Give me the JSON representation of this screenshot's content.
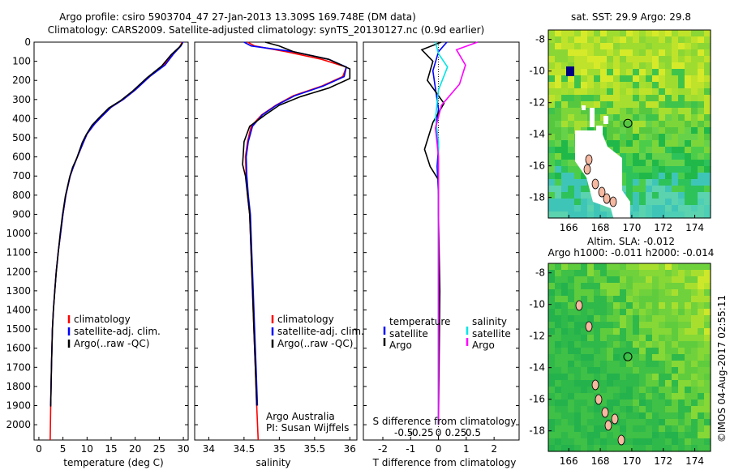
{
  "header": {
    "line1": "Argo profile: csiro 5903704_47 27-Jan-2013 13.309S 169.748E (DM data)",
    "line2": "Climatology: CARS2009. Satellite-adjusted climatology: synTS_20130127.nc (0.9d earlier)"
  },
  "colors": {
    "climatology": "#ff0000",
    "satellite": "#0000ff",
    "argo": "#000000",
    "t_satellite": "#0000ff",
    "t_argo": "#000000",
    "s_satellite": "#00e5e5",
    "s_argo": "#ff00ff"
  },
  "chart_data": [
    {
      "type": "line",
      "id": "temperature",
      "xlabel": "temperature (deg C)",
      "xlim": [
        -1,
        31
      ],
      "ylim": [
        2080,
        0
      ],
      "xticks": [
        "0",
        "5",
        "10",
        "15",
        "20",
        "25",
        "30"
      ],
      "yticks": [
        "0",
        "100",
        "200",
        "300",
        "400",
        "500",
        "600",
        "700",
        "800",
        "900",
        "1000",
        "1100",
        "1200",
        "1300",
        "1400",
        "1500",
        "1600",
        "1700",
        "1800",
        "1900",
        "2000"
      ],
      "legend": [
        "climatology",
        "satellite-adj. clim.",
        "Argo(..raw -QC)"
      ],
      "series": [
        {
          "name": "climatology",
          "x": [
            29.7,
            29.4,
            28,
            26,
            23,
            20,
            17.5,
            15,
            13,
            11.5,
            10,
            9.3,
            8,
            7.2,
            6.5,
            5.6,
            5,
            4.5,
            4,
            3.6,
            3.3,
            3,
            2.8,
            2.6,
            2.45,
            2.35
          ],
          "y": [
            0,
            20,
            60,
            120,
            180,
            250,
            300,
            340,
            390,
            430,
            480,
            520,
            600,
            650,
            700,
            800,
            900,
            1000,
            1100,
            1200,
            1300,
            1400,
            1500,
            1700,
            1900,
            2080
          ]
        },
        {
          "name": "satellite-adj. clim.",
          "x": [
            29.9,
            29.5,
            28,
            26.2,
            23,
            20,
            17.5,
            15,
            13,
            11.5,
            10,
            9.3,
            8,
            7.2,
            6.5,
            5.6,
            5,
            4.5,
            4,
            3.6,
            3.3,
            3,
            2.8,
            2.6,
            2.45
          ],
          "y": [
            0,
            20,
            60,
            120,
            180,
            250,
            300,
            340,
            390,
            430,
            480,
            520,
            600,
            650,
            700,
            800,
            900,
            1000,
            1100,
            1200,
            1300,
            1400,
            1500,
            1700,
            1900
          ]
        },
        {
          "name": "Argo(..raw -QC)",
          "x": [
            29.8,
            29.2,
            27.5,
            25.5,
            22.5,
            19.5,
            17,
            14.5,
            12.5,
            11,
            9.8,
            9,
            7.9,
            7.0,
            6.4,
            5.5,
            4.9,
            4.4,
            4,
            3.6,
            3.3,
            3,
            2.8,
            2.6,
            2.45
          ],
          "y": [
            5,
            25,
            65,
            125,
            185,
            255,
            305,
            345,
            395,
            435,
            485,
            525,
            605,
            655,
            705,
            805,
            905,
            1005,
            1105,
            1205,
            1305,
            1405,
            1505,
            1705,
            1905
          ]
        }
      ]
    },
    {
      "type": "line",
      "id": "salinity",
      "xlabel": "salinity",
      "xlim": [
        33.8,
        36.1
      ],
      "ylim": [
        2080,
        0
      ],
      "xticks": [
        "34",
        "34.5",
        "35",
        "35.5",
        "36"
      ],
      "legend": [
        "climatology",
        "satellite-adj. clim.",
        "Argo(..raw -QC)"
      ],
      "credit": [
        "Argo Australia",
        "PI: Susan Wijffels"
      ],
      "series": [
        {
          "name": "climatology",
          "x": [
            34.55,
            34.65,
            35.1,
            35.6,
            35.95,
            35.9,
            35.6,
            35.2,
            34.95,
            34.75,
            34.6,
            34.55,
            34.52,
            34.53,
            34.55,
            34.58,
            34.6,
            34.62,
            34.64,
            34.66,
            34.68,
            34.7
          ],
          "y": [
            0,
            20,
            50,
            90,
            130,
            180,
            230,
            280,
            330,
            380,
            440,
            520,
            600,
            700,
            800,
            900,
            1100,
            1300,
            1500,
            1700,
            1900,
            2080
          ]
        },
        {
          "name": "satellite-adj. clim.",
          "x": [
            34.5,
            34.6,
            35.2,
            35.7,
            35.95,
            35.92,
            35.62,
            35.22,
            34.96,
            34.76,
            34.62,
            34.56,
            34.53,
            34.54,
            34.56,
            34.59,
            34.61,
            34.63,
            34.65,
            34.67,
            34.69
          ],
          "y": [
            0,
            20,
            50,
            90,
            130,
            180,
            230,
            280,
            330,
            380,
            440,
            520,
            600,
            700,
            800,
            900,
            1100,
            1300,
            1500,
            1700,
            1900
          ]
        },
        {
          "name": "Argo(..raw -QC)",
          "x": [
            34.8,
            35.0,
            35.2,
            35.7,
            36.0,
            36.0,
            35.7,
            35.3,
            35.0,
            34.8,
            34.58,
            34.5,
            34.48,
            34.52,
            34.55,
            34.58,
            34.6,
            34.62,
            34.64,
            34.66,
            34.68
          ],
          "y": [
            0,
            20,
            50,
            90,
            140,
            190,
            240,
            285,
            330,
            380,
            440,
            520,
            640,
            700,
            800,
            900,
            1100,
            1300,
            1500,
            1700,
            1900
          ]
        }
      ]
    },
    {
      "type": "line",
      "id": "difference",
      "xlabel_top": "S difference from climatology",
      "xlabel": "T difference from climatology",
      "xlim": [
        -2.7,
        2.9
      ],
      "ylim": [
        2080,
        0
      ],
      "s_ticks": [
        "-0.5",
        "-0.25",
        "0",
        "0.25",
        "0.5"
      ],
      "t_ticks": [
        "-2",
        "-1",
        "0",
        "1",
        "2"
      ],
      "legend_t": {
        "title": "temperature",
        "items": [
          "satellite",
          "Argo"
        ]
      },
      "legend_s": {
        "title": "salinity",
        "items": [
          "satellite",
          "Argo"
        ]
      },
      "series": [
        {
          "name": "T satellite",
          "x": [
            0.3,
            0.0,
            -0.2,
            -0.1,
            0.0,
            -0.1,
            0.0,
            -0.05,
            0.0,
            0.0,
            0.0,
            0.0
          ],
          "y": [
            0,
            50,
            150,
            250,
            350,
            450,
            550,
            650,
            800,
            1100,
            1500,
            2000
          ]
        },
        {
          "name": "T Argo",
          "x": [
            0.1,
            -0.6,
            -0.2,
            -0.4,
            0.2,
            -0.2,
            -0.5,
            -0.3,
            0.0,
            0.0,
            0.05,
            0.0
          ],
          "y": [
            0,
            40,
            100,
            200,
            320,
            420,
            560,
            650,
            720,
            900,
            1300,
            2000
          ]
        },
        {
          "name": "S satellite",
          "x": [
            -0.05,
            0.0,
            0.15,
            0.0,
            -0.05,
            0.0,
            0.0,
            0.0,
            0.0,
            0.0,
            0.0
          ],
          "y": [
            0,
            60,
            130,
            250,
            400,
            520,
            700,
            900,
            1200,
            1600,
            2000
          ]
        },
        {
          "name": "S Argo",
          "x": [
            0.65,
            0.3,
            0.45,
            0.35,
            0.05,
            -0.05,
            0.0,
            0.0,
            0.0,
            0.0,
            0.0
          ],
          "y": [
            0,
            40,
            120,
            220,
            330,
            450,
            600,
            800,
            1100,
            1500,
            2000
          ]
        }
      ]
    },
    {
      "type": "heatmap",
      "id": "sst-map",
      "title": "sat. SST: 29.9 Argo: 29.8",
      "xticks": [
        "166",
        "168",
        "170",
        "172",
        "174"
      ],
      "yticks": [
        "-8",
        "-10",
        "-12",
        "-14",
        "-16",
        "-18"
      ],
      "xlim": [
        164.7,
        175.0
      ],
      "ylim": [
        -19.3,
        -7.4
      ],
      "marker": {
        "lon": 169.748,
        "lat": -13.309
      }
    },
    {
      "type": "heatmap",
      "id": "sla-map",
      "title": "Altim. SLA: -0.012",
      "subtitle": "Argo h1000: -0.011 h2000: -0.014",
      "xticks": [
        "166",
        "168",
        "170",
        "172",
        "174"
      ],
      "yticks": [
        "-8",
        "-10",
        "-12",
        "-14",
        "-16",
        "-18"
      ],
      "xlim": [
        164.7,
        175.0
      ],
      "ylim": [
        -19.3,
        -7.4
      ],
      "marker": {
        "lon": 169.748,
        "lat": -13.309
      }
    }
  ],
  "footer": {
    "stamp": "©IMOS 04-Aug-2017 02:55:11"
  }
}
